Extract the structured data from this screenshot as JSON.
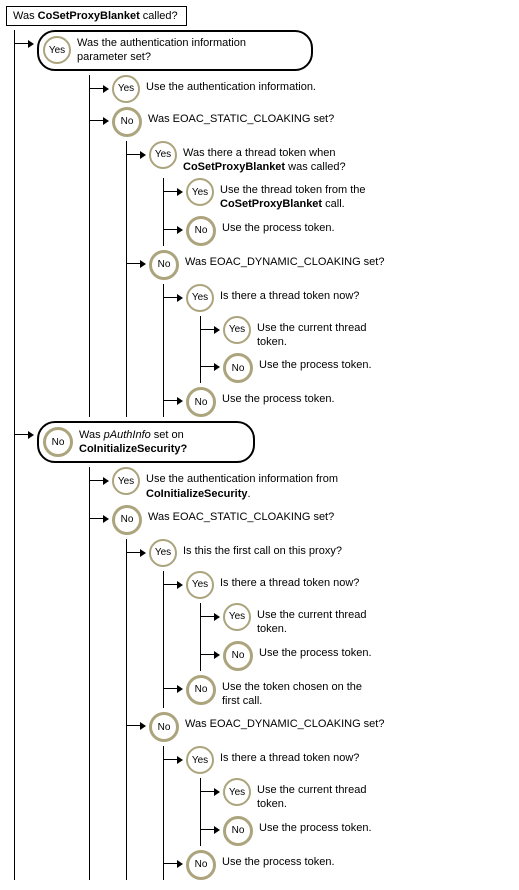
{
  "root": "Was <b>CoSetProxyBlanket</b> called?",
  "yesLabel": "Yes",
  "noLabel": "No",
  "colors": {
    "badge_border": "#aba47d",
    "line": "#000000",
    "text": "#000000",
    "bg": "#ffffff"
  },
  "q_authinfo_param": "Was the authentication information parameter set?",
  "a_use_authinfo": "Use the authentication information.",
  "q_static_cloak_1": "Was EOAC_STATIC_CLOAKING set?",
  "q_thread_token_cspb": "Was there a thread token when <b>CoSetProxyBlanket</b> was called?",
  "a_use_thread_cspb": "Use the thread token from the <b>CoSetProxyBlanket</b> call.",
  "a_use_process": "Use the process token.",
  "q_dynamic_cloak_1": "Was EOAC_DYNAMIC_CLOAKING set?",
  "q_thread_token_now": "Is there a thread token now?",
  "a_use_current_thread": "Use the current thread token.",
  "q_pauthinfo": "Was <i>pAuthInfo</i> set on <b>CoInitializeSecurity?</b>",
  "a_use_authinfo_cis": "Use the authentication information from <b>CoInitializeSecurity</b>.",
  "q_static_cloak_2": "Was EOAC_STATIC_CLOAKING set?",
  "q_first_call": "Is this the first call on this proxy?",
  "a_token_first_call": "Use the token chosen on the first call.",
  "q_dynamic_cloak_2": "Was EOAC_DYNAMIC_CLOAKING set?"
}
